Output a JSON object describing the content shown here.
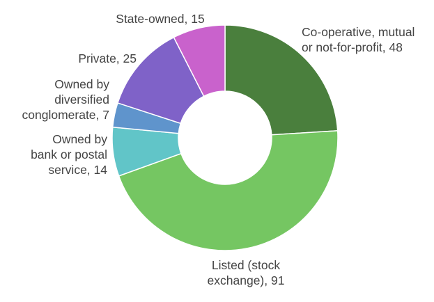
{
  "chart_data": {
    "type": "pie",
    "title": "",
    "donut": true,
    "slices": [
      {
        "label_lines": [
          "Co-operative, mutual",
          "or not-for-profit, 48"
        ],
        "category": "Co-operative, mutual or not-for-profit",
        "value": 48,
        "color": "#4a7f3d"
      },
      {
        "label_lines": [
          "Listed (stock",
          "exchange), 91"
        ],
        "category": "Listed (stock exchange)",
        "value": 91,
        "color": "#75c662"
      },
      {
        "label_lines": [
          "Owned by",
          "bank or postal",
          "service, 14"
        ],
        "category": "Owned by bank or postal service",
        "value": 14,
        "color": "#61c5c8"
      },
      {
        "label_lines": [
          "Owned by",
          "diversified",
          "conglomerate, 7"
        ],
        "category": "Owned by diversified conglomerate",
        "value": 7,
        "color": "#5f94cc"
      },
      {
        "label_lines": [
          "Private, 25"
        ],
        "category": "Private",
        "value": 25,
        "color": "#7f62c8"
      },
      {
        "label_lines": [
          "State-owned, 15"
        ],
        "category": "State-owned",
        "value": 15,
        "color": "#c962cc"
      }
    ]
  }
}
